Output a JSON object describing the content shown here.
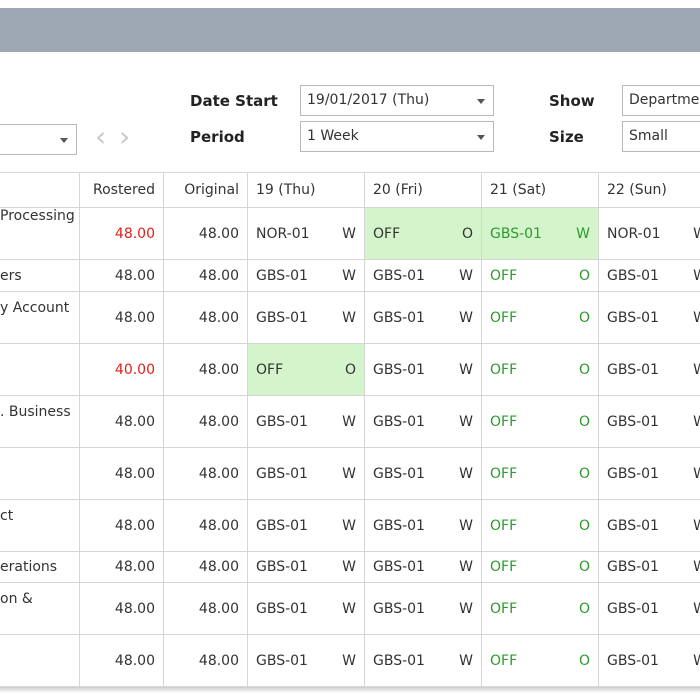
{
  "toolbar": {
    "date_start_label": "Date Start",
    "date_start_value": "19/01/2017 (Thu)",
    "period_label": "Period",
    "period_value": "1 Week",
    "show_label": "Show",
    "show_value": "Departmen",
    "size_label": "Size",
    "size_value": "Small",
    "prev": "‹",
    "next": "›"
  },
  "table": {
    "headers": [
      "Rostered",
      "Original",
      "19 (Thu)",
      "20 (Fri)",
      "21 (Sat)",
      "22 (Sun)"
    ],
    "rows": [
      {
        "name": "Processing",
        "rostered": "48.00",
        "rostered_alert": true,
        "original": "48.00",
        "days": [
          {
            "code": "NOR-01",
            "type": "W"
          },
          {
            "code": "OFF",
            "type": "O",
            "highlight": true
          },
          {
            "code": "GBS-01",
            "type": "W",
            "highlight": true,
            "green_text": true
          },
          {
            "code": "NOR-01",
            "type": "W"
          }
        ]
      },
      {
        "name": "ers",
        "rostered": "48.00",
        "original": "48.00",
        "days": [
          {
            "code": "GBS-01",
            "type": "W"
          },
          {
            "code": "GBS-01",
            "type": "W"
          },
          {
            "code": "OFF",
            "type": "O",
            "green_text": true
          },
          {
            "code": "GBS-01",
            "type": "W"
          }
        ]
      },
      {
        "name": "y Account",
        "rostered": "48.00",
        "original": "48.00",
        "days": [
          {
            "code": "GBS-01",
            "type": "W"
          },
          {
            "code": "GBS-01",
            "type": "W"
          },
          {
            "code": "OFF",
            "type": "O",
            "green_text": true
          },
          {
            "code": "GBS-01",
            "type": "W"
          }
        ]
      },
      {
        "name": "",
        "rostered": "40.00",
        "rostered_alert": true,
        "original": "48.00",
        "days": [
          {
            "code": "OFF",
            "type": "O",
            "highlight": true
          },
          {
            "code": "GBS-01",
            "type": "W"
          },
          {
            "code": "OFF",
            "type": "O",
            "green_text": true
          },
          {
            "code": "GBS-01",
            "type": "W"
          }
        ]
      },
      {
        "name": ". Business",
        "rostered": "48.00",
        "original": "48.00",
        "days": [
          {
            "code": "GBS-01",
            "type": "W"
          },
          {
            "code": "GBS-01",
            "type": "W"
          },
          {
            "code": "OFF",
            "type": "O",
            "green_text": true
          },
          {
            "code": "GBS-01",
            "type": "W"
          }
        ]
      },
      {
        "name": "",
        "rostered": "48.00",
        "original": "48.00",
        "days": [
          {
            "code": "GBS-01",
            "type": "W"
          },
          {
            "code": "GBS-01",
            "type": "W"
          },
          {
            "code": "OFF",
            "type": "O",
            "green_text": true
          },
          {
            "code": "GBS-01",
            "type": "W"
          }
        ]
      },
      {
        "name": "ct",
        "rostered": "48.00",
        "original": "48.00",
        "days": [
          {
            "code": "GBS-01",
            "type": "W"
          },
          {
            "code": "GBS-01",
            "type": "W"
          },
          {
            "code": "OFF",
            "type": "O",
            "green_text": true
          },
          {
            "code": "GBS-01",
            "type": "W"
          }
        ]
      },
      {
        "name": "erations",
        "rostered": "48.00",
        "original": "48.00",
        "days": [
          {
            "code": "GBS-01",
            "type": "W"
          },
          {
            "code": "GBS-01",
            "type": "W"
          },
          {
            "code": "OFF",
            "type": "O",
            "green_text": true
          },
          {
            "code": "GBS-01",
            "type": "W"
          }
        ]
      },
      {
        "name": "on &",
        "rostered": "48.00",
        "original": "48.00",
        "days": [
          {
            "code": "GBS-01",
            "type": "W"
          },
          {
            "code": "GBS-01",
            "type": "W"
          },
          {
            "code": "OFF",
            "type": "O",
            "green_text": true
          },
          {
            "code": "GBS-01",
            "type": "W"
          }
        ]
      },
      {
        "name": "",
        "rostered": "48.00",
        "original": "48.00",
        "days": [
          {
            "code": "GBS-01",
            "type": "W"
          },
          {
            "code": "GBS-01",
            "type": "W"
          },
          {
            "code": "OFF",
            "type": "O",
            "green_text": true
          },
          {
            "code": "GBS-01",
            "type": "W"
          }
        ]
      }
    ]
  }
}
